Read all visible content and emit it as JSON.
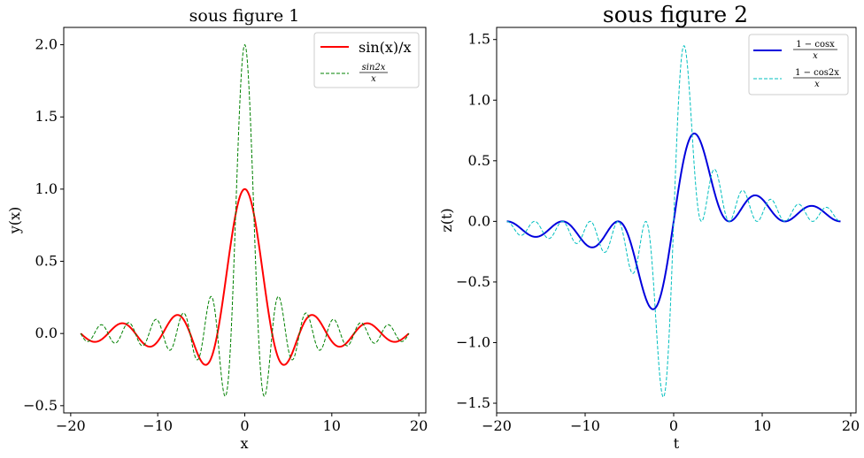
{
  "chart_data": [
    {
      "type": "line",
      "title": "sous figure 1",
      "xlabel": "x",
      "ylabel": "y(x)",
      "xlim": [
        -20.8,
        20.8
      ],
      "ylim": [
        -0.55,
        2.12
      ],
      "xticks": [
        -20,
        -10,
        0,
        10,
        20
      ],
      "xtick_labels": [
        "−20",
        "−10",
        "0",
        "10",
        "20"
      ],
      "yticks": [
        -0.5,
        0.0,
        0.5,
        1.0,
        1.5,
        2.0
      ],
      "ytick_labels": [
        "−0.5",
        "0.0",
        "0.5",
        "1.0",
        "1.5",
        "2.0"
      ],
      "x_range": [
        -18.85,
        18.85
      ],
      "legend_position": "upper right",
      "series": [
        {
          "name": "sin(x)/x",
          "function": "sin(x)/x",
          "color": "#ff0000",
          "style": "solid"
        },
        {
          "name": "sin2x / x",
          "function": "sin(2x)/x",
          "color": "#008000",
          "style": "dashed",
          "name_parts": {
            "numerator": "sin2x",
            "denominator": "x"
          }
        }
      ]
    },
    {
      "type": "line",
      "title": "sous figure 2",
      "xlabel": "t",
      "ylabel": "z(t)",
      "xlim": [
        -20.0,
        20.6
      ],
      "ylim": [
        -1.58,
        1.6
      ],
      "xticks": [
        -20,
        -10,
        0,
        10,
        20
      ],
      "xtick_labels": [
        "−20",
        "−10",
        "0",
        "10",
        "20"
      ],
      "yticks": [
        -1.5,
        -1.0,
        -0.5,
        0.0,
        0.5,
        1.0,
        1.5
      ],
      "ytick_labels": [
        "−1.5",
        "−1.0",
        "−0.5",
        "0.0",
        "0.5",
        "1.0",
        "1.5"
      ],
      "x_range": [
        -18.85,
        18.85
      ],
      "legend_position": "upper right",
      "series": [
        {
          "name": "1 − cosx / x",
          "function": "(1-cos(x))/x",
          "color": "#0000dd",
          "style": "solid",
          "name_parts": {
            "numerator": "1 − cosx",
            "denominator": "x"
          }
        },
        {
          "name": "1 − cos2x / x",
          "function": "(1-cos(2x))/x",
          "color": "#00bfbf",
          "style": "dashed",
          "name_parts": {
            "numerator": "1 − cos2x",
            "denominator": "x"
          }
        }
      ]
    }
  ]
}
